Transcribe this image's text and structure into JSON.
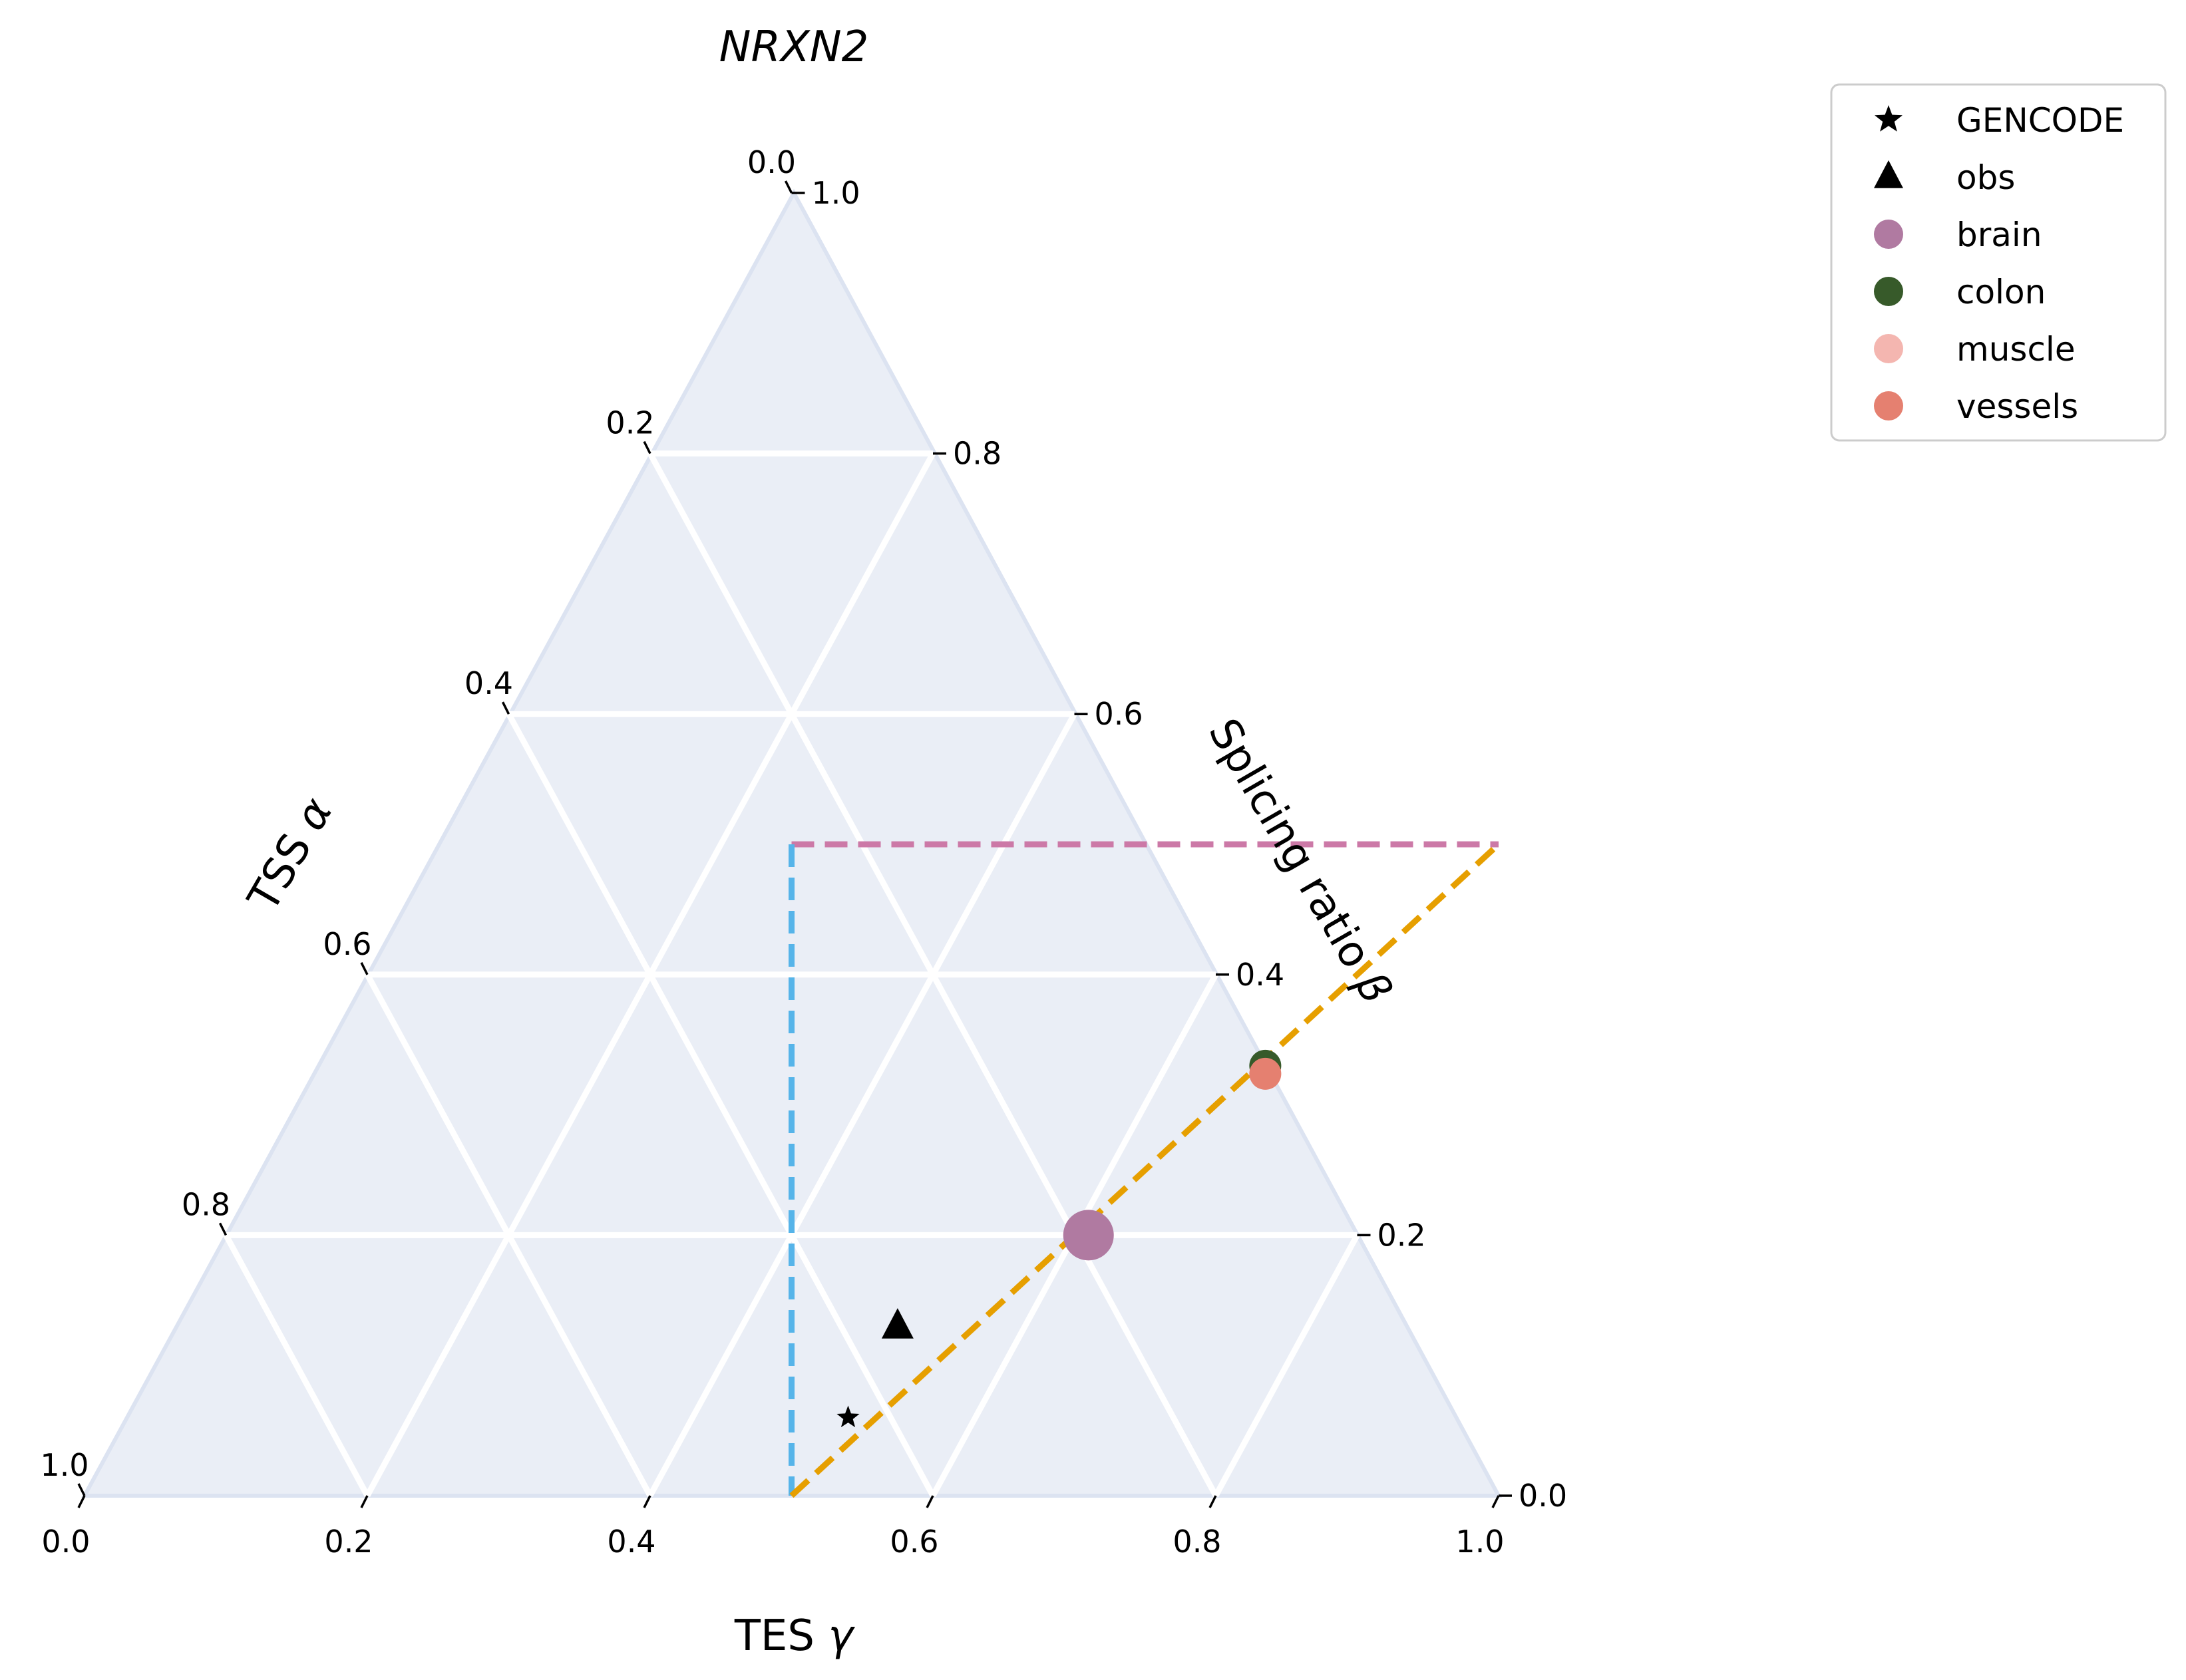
{
  "chart_data": {
    "type": "ternary-scatter",
    "title": "NRXN2",
    "axes": {
      "left": {
        "label_prefix": "TSS ",
        "symbol": "α",
        "ticks": [
          "0.0",
          "0.2",
          "0.4",
          "0.6",
          "0.8",
          "1.0"
        ]
      },
      "right": {
        "label_prefix": "Splicing ratio ",
        "symbol": "β",
        "ticks": [
          "0.0",
          "0.2",
          "0.4",
          "0.6",
          "0.8",
          "1.0"
        ]
      },
      "bottom": {
        "label_prefix": "TES ",
        "symbol": "γ",
        "ticks": [
          "0.0",
          "0.2",
          "0.4",
          "0.6",
          "0.8",
          "1.0"
        ]
      }
    },
    "grid": true,
    "background_color": "#EAEEF6",
    "boundary_lines": [
      {
        "name": "alpha-line",
        "color": "#CC79A7",
        "style": "dashed",
        "from": {
          "gamma": 0.25,
          "beta": 0.5
        },
        "to": {
          "gamma": 0.75,
          "beta": 0.5
        }
      },
      {
        "name": "beta-line",
        "color": "#56B4E9",
        "style": "dashed",
        "from": {
          "gamma": 0.25,
          "beta": 0.5
        },
        "to": {
          "gamma": 0.5,
          "beta": 0.0
        }
      },
      {
        "name": "gamma-line",
        "color": "#E69F00",
        "style": "dashed",
        "from": {
          "gamma": 0.5,
          "beta": 0.0
        },
        "to": {
          "gamma": 0.75,
          "beta": 0.5
        }
      }
    ],
    "series": [
      {
        "name": "GENCODE",
        "marker": "star",
        "color": "#000000",
        "size": "small",
        "points": [
          {
            "gamma": 0.51,
            "beta": 0.06
          }
        ]
      },
      {
        "name": "obs",
        "marker": "triangle",
        "color": "#000000",
        "size": "medium",
        "points": [
          {
            "gamma": 0.51,
            "beta": 0.13
          }
        ]
      },
      {
        "name": "brain",
        "marker": "circle",
        "color": "#B07AA1",
        "size": "large",
        "points": [
          {
            "gamma": 0.61,
            "beta": 0.2
          }
        ]
      },
      {
        "name": "colon",
        "marker": "circle",
        "color": "#375A2A",
        "size": "medium",
        "points": [
          {
            "gamma": 0.67,
            "beta": 0.33
          }
        ]
      },
      {
        "name": "muscle",
        "marker": "circle",
        "color": "#F4B6B0",
        "size": "medium",
        "points": []
      },
      {
        "name": "vessels",
        "marker": "circle",
        "color": "#E58070",
        "size": "medium",
        "points": [
          {
            "gamma": 0.67,
            "beta": 0.33
          }
        ]
      }
    ],
    "legend": {
      "placement": "outside-top-right",
      "entries": [
        "GENCODE",
        "obs",
        "brain",
        "colon",
        "muscle",
        "vessels"
      ]
    }
  }
}
